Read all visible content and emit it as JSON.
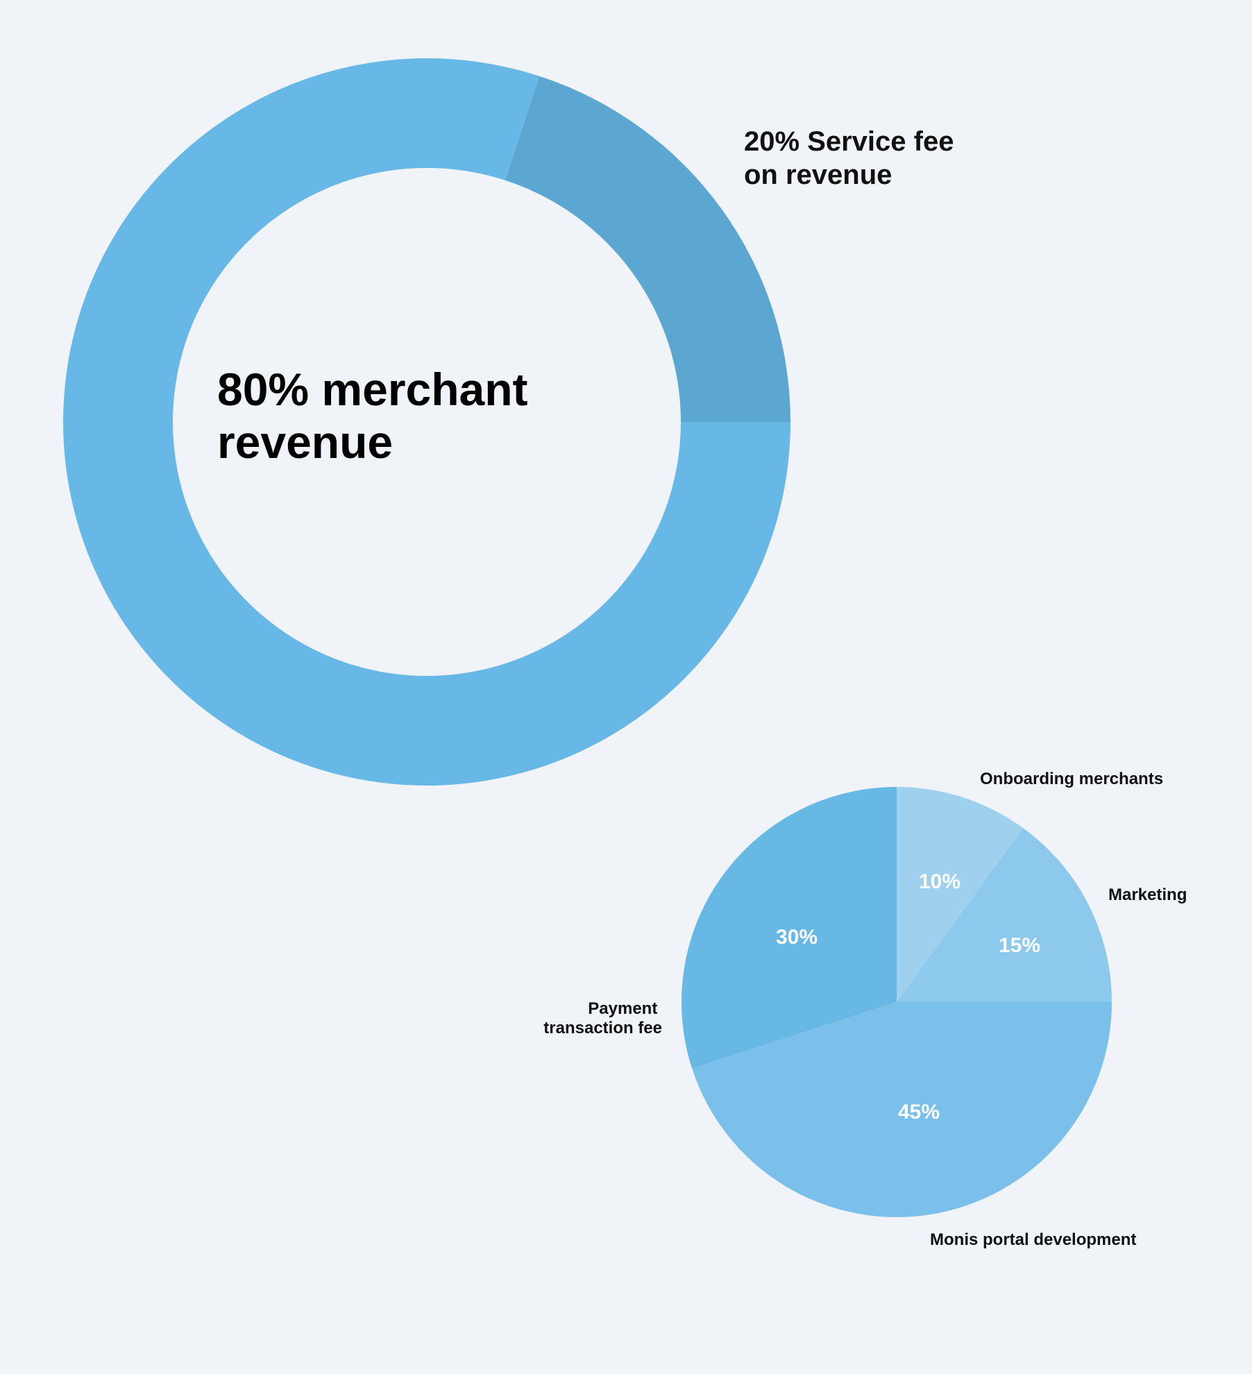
{
  "colors": {
    "background": "#f0f4f8",
    "donut_main": "#67b8e6",
    "donut_fee": "#5ca7d2",
    "pie_payment": "#68b8e6",
    "pie_onboarding": "#9fd0ee",
    "pie_marketing": "#8cc9ec",
    "pie_portal": "#7bc0ea"
  },
  "chart_data": [
    {
      "type": "pie",
      "variant": "donut",
      "slices": [
        {
          "label_lines": [
            "80% merchant",
            "revenue"
          ],
          "value": 80
        },
        {
          "label_lines": [
            "20% Service fee",
            "on revenue"
          ],
          "value": 20
        }
      ]
    },
    {
      "type": "pie",
      "slices": [
        {
          "label": "Onboarding merchants",
          "value": 10,
          "value_label": "10%"
        },
        {
          "label": "Marketing",
          "value": 15,
          "value_label": "15%"
        },
        {
          "label": "Monis portal development",
          "value": 45,
          "value_label": "45%"
        },
        {
          "label_lines": [
            "Payment",
            "transaction fee"
          ],
          "value": 30,
          "value_label": "30%"
        }
      ]
    }
  ]
}
